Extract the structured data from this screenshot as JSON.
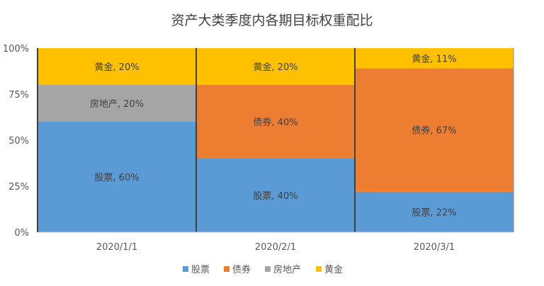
{
  "chart_data": {
    "type": "bar",
    "stacked": "percent",
    "title": "资产大类季度内各期目标权重配比",
    "categories": [
      "2020/1/1",
      "2020/2/1",
      "2020/3/1"
    ],
    "series": [
      {
        "name": "股票",
        "color": "#5B9BD5",
        "values": [
          60,
          40,
          22
        ]
      },
      {
        "name": "债券",
        "color": "#ED7D31",
        "values": [
          0,
          40,
          67
        ]
      },
      {
        "name": "房地产",
        "color": "#A5A5A5",
        "values": [
          20,
          0,
          0
        ]
      },
      {
        "name": "黄金",
        "color": "#FFC000",
        "values": [
          20,
          20,
          11
        ]
      }
    ],
    "yticks": [
      "0%",
      "25%",
      "50%",
      "75%",
      "100%"
    ],
    "ylim": [
      0,
      100
    ],
    "grid": false,
    "legend": "bottom",
    "data_labels": true
  }
}
